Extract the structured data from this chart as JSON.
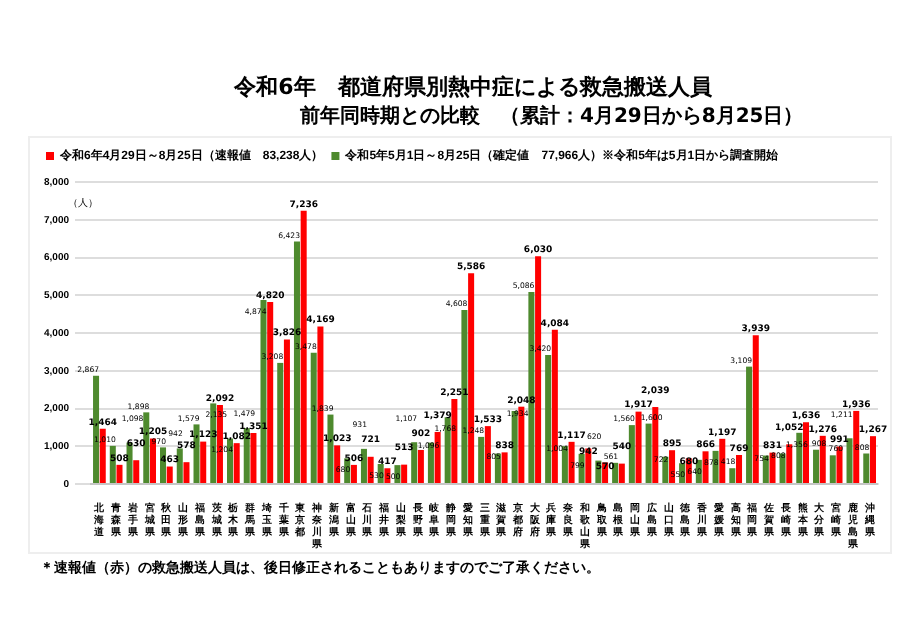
{
  "chart_data": {
    "type": "bar",
    "title": "令和6年　都道府県別熱中症による救急搬送人員",
    "subtitle": "前年同時期との比較　（累計：4月29日から8月25日）",
    "ylabel": "（人）",
    "categories": [
      "北海道",
      "青森県",
      "岩手県",
      "宮城県",
      "秋田県",
      "山形県",
      "福島県",
      "茨城県",
      "栃木県",
      "群馬県",
      "埼玉県",
      "千葉県",
      "東京都",
      "神奈川県",
      "新潟県",
      "富山県",
      "石川県",
      "福井県",
      "山梨県",
      "長野県",
      "岐阜県",
      "静岡県",
      "愛知県",
      "三重県",
      "滋賀県",
      "京都府",
      "大阪府",
      "兵庫県",
      "奈良県",
      "和歌山県",
      "鳥取県",
      "島根県",
      "岡山県",
      "広島県",
      "山口県",
      "徳島県",
      "香川県",
      "愛媛県",
      "高知県",
      "福岡県",
      "佐賀県",
      "長崎県",
      "熊本県",
      "大分県",
      "宮崎県",
      "鹿児島県",
      "沖縄県"
    ],
    "series": [
      {
        "name": "令和5年5月1日～8月25日（確定値　77,966人）※令和5年は5月1日から調査開始",
        "color": "#4e8a2e",
        "values": [
          2867,
          1010,
          1098,
          1898,
          970,
          942,
          1579,
          2135,
          1204,
          1479,
          4874,
          3208,
          6423,
          3478,
          1839,
          680,
          931,
          530,
          500,
          1107,
          1096,
          1768,
          4608,
          1248,
          805,
          1934,
          5086,
          3420,
          1004,
          799,
          620,
          561,
          1560,
          1600,
          722,
          550,
          640,
          878,
          418,
          3109,
          754,
          808,
          1356,
          908,
          760,
          1211,
          808
        ],
        "value_labels": [
          "2,867",
          "1,010",
          "1,098",
          "1,898",
          "970",
          "942",
          "1,579",
          "2,135",
          "1,204",
          "1,479",
          "4,874",
          "3,208",
          "6,423",
          "3,478",
          "1,839",
          "680",
          "931",
          "530",
          "500",
          "1,107",
          "1,096",
          "1,768",
          "4,608",
          "1,248",
          "805",
          "1,934",
          "5,086",
          "3,420",
          "1,004",
          "799",
          "620",
          "561",
          "1,560",
          "1,600",
          "722",
          "550",
          "640",
          "878",
          "418",
          "3,109",
          "754",
          "808",
          "1,356",
          "908",
          "760",
          "1,211",
          "808"
        ]
      },
      {
        "name": "令和6年4月29日～8月25日（速報値　83,238人）",
        "color": "#ff0000",
        "values": [
          1464,
          508,
          630,
          1205,
          463,
          578,
          1123,
          2092,
          1082,
          1351,
          4820,
          3826,
          7236,
          4169,
          1023,
          506,
          721,
          417,
          513,
          902,
          1379,
          2251,
          5586,
          1533,
          838,
          2048,
          6030,
          4084,
          1117,
          942,
          570,
          540,
          1917,
          2039,
          895,
          680,
          866,
          1197,
          769,
          3939,
          831,
          1052,
          1636,
          1276,
          991,
          1936,
          1267
        ],
        "value_labels": [
          "1,464",
          "508",
          "630",
          "1,205",
          "463",
          "578",
          "1,123",
          "2,092",
          "1,082",
          "1,351",
          "4,820",
          "3,826",
          "7,236",
          "4,169",
          "1,023",
          "506",
          "721",
          "417",
          "513",
          "902",
          "1,379",
          "2,251",
          "5,586",
          "1,533",
          "838",
          "2,048",
          "6,030",
          "4,084",
          "1,117",
          "942",
          "570",
          "540",
          "1,917",
          "2,039",
          "895",
          "680",
          "866",
          "1,197",
          "769",
          "3,939",
          "831",
          "1,052",
          "1,636",
          "1,276",
          "991",
          "1,936",
          "1,267"
        ]
      }
    ],
    "ylim": [
      0,
      8000
    ],
    "yticks": [
      0,
      {
        "value": 1000,
        "label": "1,000"
      },
      {
        "value": 2000,
        "label": "2,000"
      },
      {
        "value": 3000,
        "label": "3,000"
      },
      {
        "value": 4000,
        "label": "4,000"
      },
      {
        "value": 5000,
        "label": "5,000"
      },
      {
        "value": 6000,
        "label": "6,000"
      },
      {
        "value": 7000,
        "label": "7,000"
      },
      {
        "value": 8000,
        "label": "8,000"
      }
    ],
    "grid": "y",
    "legend": "top left",
    "annotations": [
      "＊速報値（赤）の救急搬送人員は、後日修正されることもありますのでご了承ください。"
    ]
  }
}
